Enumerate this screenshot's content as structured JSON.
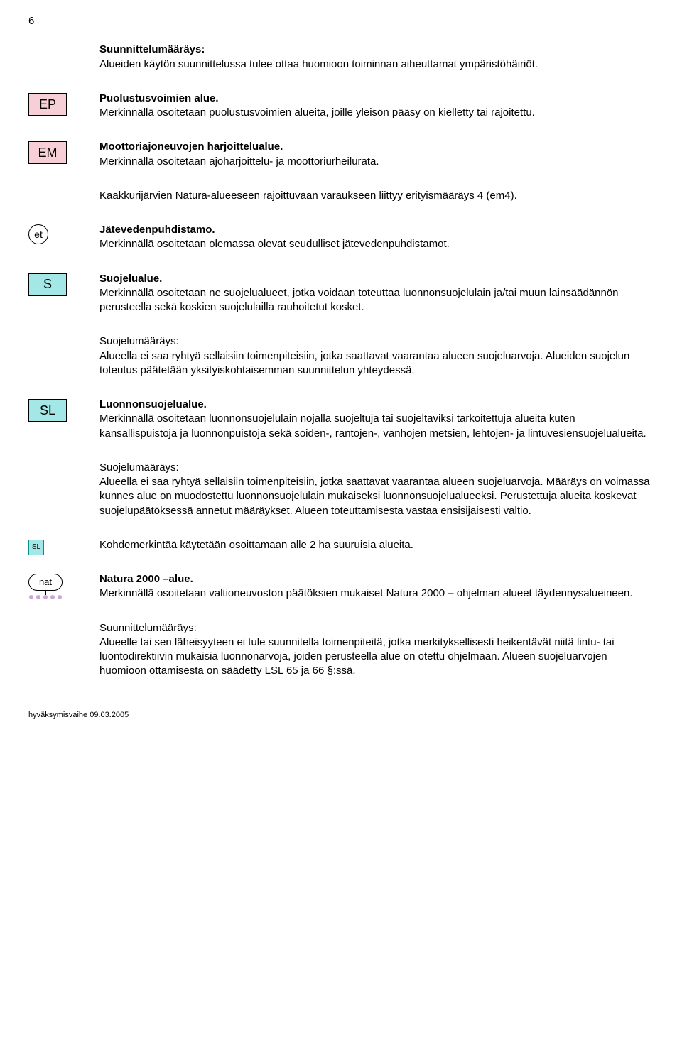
{
  "page_number": "6",
  "intro_heading": "Suunnittelumääräys:",
  "intro_body": "Alueiden käytön suunnittelussa tulee ottaa huomioon toiminnan aiheuttamat ympäristöhäiriöt.",
  "ep": {
    "label": "EP",
    "bg": "#f7cfd6",
    "title": "Puolustusvoimien alue.",
    "body": "Merkinnällä osoitetaan puolustusvoimien alueita, joille yleisön pääsy on kielletty tai rajoitettu."
  },
  "em": {
    "label": "EM",
    "bg": "#f7cfd6",
    "title": "Moottoriajoneuvojen harjoittelualue.",
    "body": "Merkinnällä osoitetaan ajoharjoittelu- ja moottoriurheilurata."
  },
  "kaakkuri": "Kaakkurijärvien Natura-alueeseen rajoittuvaan varaukseen liittyy erityismääräys 4 (em4).",
  "et": {
    "label": "et",
    "title": "Jätevedenpuhdistamo.",
    "body": "Merkinnällä osoitetaan olemassa olevat seudulliset jätevedenpuhdistamot."
  },
  "s": {
    "label": "S",
    "bg": "#a3e7e7",
    "title": "Suojelualue.",
    "body": "Merkinnällä osoitetaan ne suojelualueet, jotka voidaan toteuttaa luonnonsuojelulain ja/tai muun lainsäädännön perusteella sekä koskien suojelulailla rauhoitetut kosket."
  },
  "s_maar_title": "Suojelumääräys:",
  "s_maar_body": "Alueella ei saa ryhtyä sellaisiin toimenpiteisiin, jotka saattavat vaarantaa alueen suojeluarvoja. Alueiden suojelun toteutus päätetään yksityiskohtaisemman suunnittelun yhteydessä.",
  "sl": {
    "label": "SL",
    "bg": "#a3e7e7",
    "title": "Luonnonsuojelualue.",
    "body": "Merkinnällä osoitetaan luonnonsuojelulain nojalla suojeltuja tai suojeltaviksi tarkoitettuja alueita kuten kansallispuistoja ja luonnonpuistoja sekä soiden-, rantojen-, vanhojen metsien, lehtojen- ja lintuvesiensuojelualueita."
  },
  "sl_maar_title": "Suojelumääräys:",
  "sl_maar_body": "Alueella ei saa ryhtyä sellaisiin toimenpiteisiin, jotka saattavat vaarantaa alueen suojeluarvoja. Määräys on voimassa kunnes alue on muodostettu luonnonsuojelulain mukaiseksi luonnonsuojelualueeksi. Perustettuja alueita koskevat suojelupäätöksessä annetut määräykset. Alueen toteuttamisesta vastaa ensisijaisesti valtio.",
  "sl_small": {
    "label": "SL",
    "bg": "#a3e7e7",
    "border": "#0b8a8a",
    "body": "Kohdemerkintää käytetään osoittamaan alle 2 ha suuruisia alueita."
  },
  "nat": {
    "label": "nat",
    "dot_color": "#c9a8d8",
    "title": "Natura 2000 –alue.",
    "body": "Merkinnällä osoitetaan valtioneuvoston päätöksien mukaiset Natura 2000 – ohjelman alueet täydennysalueineen."
  },
  "nat_maar_title": "Suunnittelumääräys:",
  "nat_maar_body": "Alueelle tai sen läheisyyteen ei tule suunnitella toimenpiteitä, jotka merkityksellisesti heikentävät niitä lintu- tai luontodirektiivin mukaisia luonnonarvoja, joiden perusteella alue on otettu ohjelmaan. Alueen suojeluarvojen huomioon ottamisesta on säädetty LSL 65 ja 66 §:ssä.",
  "footer": "hyväksymisvaihe 09.03.2005",
  "colors": {
    "text": "#000000",
    "background": "#ffffff"
  }
}
